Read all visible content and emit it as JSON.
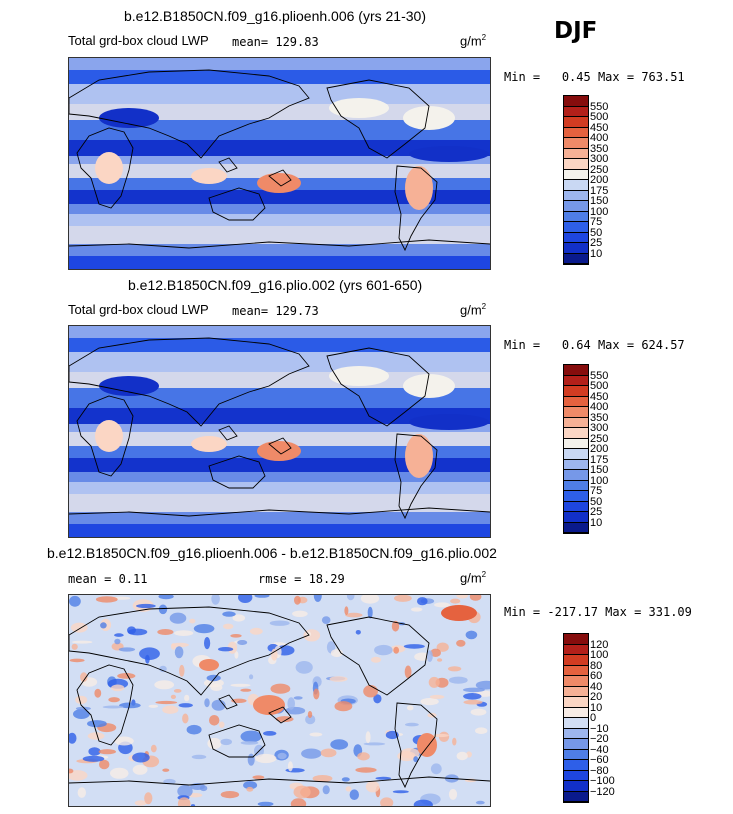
{
  "season": "DJF",
  "panels": [
    {
      "title": "b.e12.B1850CN.f09_g16.plioenh.006 (yrs 21-30)",
      "label_left": "Total grd-box cloud LWP",
      "mean_text": "mean=  129.83",
      "units": "g/m",
      "units_sup": "2",
      "min_label": "Min =",
      "min_value": "0.45",
      "max_label": "Max =",
      "max_value": "763.51"
    },
    {
      "title": "b.e12.B1850CN.f09_g16.plio.002 (yrs 601-650)",
      "label_left": "Total grd-box cloud LWP",
      "mean_text": "mean=  129.73",
      "units": "g/m",
      "units_sup": "2",
      "min_label": "Min =",
      "min_value": "0.64",
      "max_label": "Max =",
      "max_value": "624.57"
    },
    {
      "title": "b.e12.B1850CN.f09_g16.plioenh.006 - b.e12.B1850CN.f09_g16.plio.002",
      "mean_text": "mean =    0.11",
      "rmse_text": "rmse =   18.29",
      "units": "g/m",
      "units_sup": "2",
      "min_label": "Min =",
      "min_value": "-217.17",
      "max_label": "Max =",
      "max_value": "331.09"
    }
  ],
  "chart_data": [
    {
      "type": "heatmap",
      "title": "b.e12.B1850CN.f09_g16.plioenh.006 (yrs 21-30)",
      "variable": "Total grd-box cloud LWP",
      "units": "g/m2",
      "mean": 129.83,
      "min": 0.45,
      "max": 763.51,
      "levels": [
        10,
        25,
        50,
        75,
        100,
        150,
        175,
        200,
        250,
        300,
        350,
        400,
        450,
        500,
        550
      ],
      "level_labels": [
        "10",
        "25",
        "50",
        "75",
        "100",
        "150",
        "175",
        "200",
        "250",
        "300",
        "350",
        "400",
        "450",
        "500",
        "550"
      ],
      "colors": [
        "#0a1a8c",
        "#1230c8",
        "#1e46e0",
        "#2e5fe8",
        "#4f7ee6",
        "#7698e8",
        "#9db6ee",
        "#c9d8f3",
        "#f4f2ec",
        "#fbd6c4",
        "#f6b196",
        "#ef8a68",
        "#e5623f",
        "#d23c22",
        "#b3201a",
        "#860d0d"
      ]
    },
    {
      "type": "heatmap",
      "title": "b.e12.B1850CN.f09_g16.plio.002 (yrs 601-650)",
      "variable": "Total grd-box cloud LWP",
      "units": "g/m2",
      "mean": 129.73,
      "min": 0.64,
      "max": 624.57,
      "levels": [
        10,
        25,
        50,
        75,
        100,
        150,
        175,
        200,
        250,
        300,
        350,
        400,
        450,
        500,
        550
      ],
      "level_labels": [
        "10",
        "25",
        "50",
        "75",
        "100",
        "150",
        "175",
        "200",
        "250",
        "300",
        "350",
        "400",
        "450",
        "500",
        "550"
      ],
      "colors": [
        "#0a1a8c",
        "#1230c8",
        "#1e46e0",
        "#2e5fe8",
        "#4f7ee6",
        "#7698e8",
        "#9db6ee",
        "#c9d8f3",
        "#f4f2ec",
        "#fbd6c4",
        "#f6b196",
        "#ef8a68",
        "#e5623f",
        "#d23c22",
        "#b3201a",
        "#860d0d"
      ]
    },
    {
      "type": "heatmap",
      "title": "b.e12.B1850CN.f09_g16.plioenh.006 - b.e12.B1850CN.f09_g16.plio.002",
      "variable": "difference",
      "units": "g/m2",
      "mean": 0.11,
      "rmse": 18.29,
      "min": -217.17,
      "max": 331.09,
      "levels": [
        -120,
        -100,
        -80,
        -60,
        -40,
        -20,
        -10,
        0,
        10,
        20,
        40,
        60,
        80,
        100,
        120
      ],
      "level_labels": [
        "−120",
        "−100",
        "−80",
        "−60",
        "−40",
        "−20",
        "−10",
        "0",
        "10",
        "20",
        "40",
        "60",
        "80",
        "100",
        "120"
      ],
      "colors": [
        "#0a1a8c",
        "#1230c8",
        "#1e46e0",
        "#2e5fe8",
        "#4f7ee6",
        "#7698e8",
        "#9db6ee",
        "#d2def4",
        "#f7ece6",
        "#fbd6c4",
        "#f6b196",
        "#ef8a68",
        "#e5623f",
        "#d23c22",
        "#b3201a",
        "#860d0d"
      ]
    }
  ]
}
